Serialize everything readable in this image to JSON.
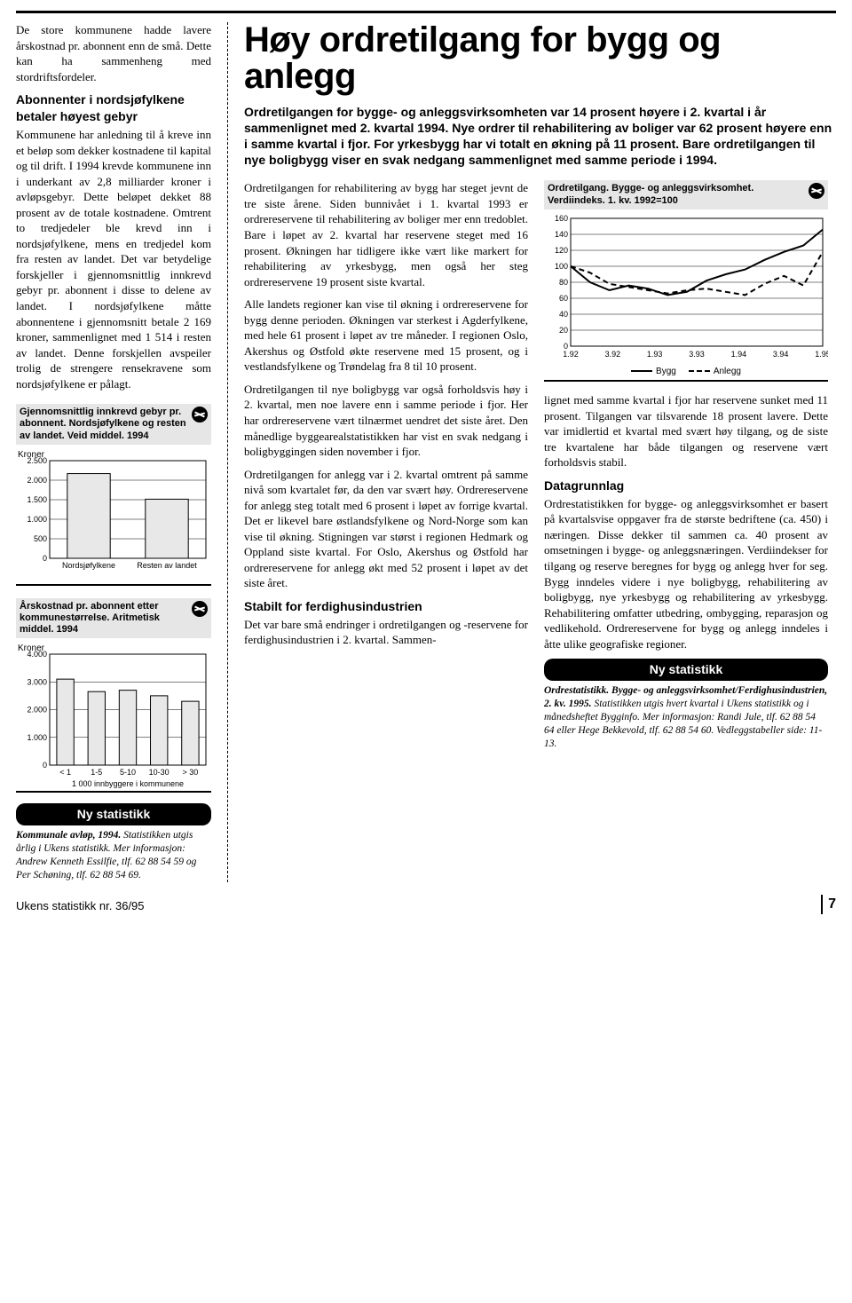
{
  "left": {
    "intro": "De store kommunene hadde lavere årskostnad pr. abonnent enn de små. Dette kan ha sammenheng med stordriftsfordeler.",
    "subhead": "Abonnenter i nordsjøfylkene betaler høyest gebyr",
    "para": "Kommunene har anledning til å kreve inn et beløp som dekker kostnadene til kapital og til drift. I 1994 krevde kommunene inn i underkant av 2,8 milliarder kroner i avløpsgebyr. Dette beløpet dekket 88 prosent av de totale kostnadene. Omtrent to tredjedeler ble krevd inn i nordsjøfylkene, mens en tredjedel kom fra resten av landet. Det var betydelige forskjeller i gjennomsnittlig innkrevd gebyr pr. abonnent i disse to delene av landet. I nordsjøfylkene måtte abonnentene i gjennomsnitt betale 2 169 kroner, sammenlignet med 1 514 i resten av landet. Denne forskjellen avspeiler trolig de strengere rensekravene som nordsjøfylkene er pålagt.",
    "chart1": {
      "title": "Gjennomsnittlig innkrevd gebyr pr. abonnent. Nordsjøfylkene og resten av landet. Veid middel. 1994",
      "ylabel": "Kroner",
      "ylim": [
        0,
        2500
      ],
      "ytick_step": 500,
      "yticklabels": [
        "0",
        "500",
        "1.000",
        "1.500",
        "2.000",
        "2.500"
      ],
      "categories": [
        "Nordsjøfylkene",
        "Resten av landet"
      ],
      "values": [
        2169,
        1514
      ],
      "bar_fill": "#e8e8e8",
      "bar_stroke": "#000000",
      "grid_color": "#000000",
      "background": "#ffffff"
    },
    "chart2": {
      "title": "Årskostnad pr. abonnent etter kommunestørrelse. Aritmetisk middel. 1994",
      "ylabel": "Kroner",
      "ylim": [
        0,
        4000
      ],
      "ytick_step": 1000,
      "yticklabels": [
        "0",
        "1.000",
        "2.000",
        "3.000",
        "4.000"
      ],
      "categories": [
        "< 1",
        "1-5",
        "5-10",
        "10-30",
        "> 30"
      ],
      "values": [
        3100,
        2650,
        2700,
        2500,
        2300
      ],
      "xlabel": "1 000 innbyggere i kommunene",
      "bar_fill": "#e8e8e8",
      "bar_stroke": "#000000",
      "grid_color": "#000000",
      "background": "#ffffff"
    },
    "nystat": "Ny statistikk",
    "ref_title": "Kommunale avløp, 1994.",
    "ref_body": "Statistikken utgis årlig i Ukens statistikk. Mer informasjon: Andrew Kenneth Essilfie, tlf. 62 88 54 59 og Per Schøning, tlf. 62 88 54 69."
  },
  "article": {
    "headline": "Høy ordretilgang for bygg og anlegg",
    "lede": "Ordretilgangen for bygge- og anleggsvirksomheten var 14 prosent høyere i 2. kvartal i år sammenlignet med 2. kvartal 1994. Nye ordrer til rehabilitering av boliger var 62 prosent høyere enn i samme kvartal i fjor. For yrkesbygg har vi totalt en økning på 11 prosent. Bare ordretilgangen til nye boligbygg viser en svak nedgang sammenlignet med samme periode i 1994.",
    "p1": "Ordretilgangen for rehabilitering av bygg har steget jevnt de tre siste årene. Siden bunnivået i 1. kvartal 1993 er ordrereservene til rehabilitering av boliger mer enn tredoblet. Bare i løpet av 2. kvartal har reservene steget med 16 prosent. Økningen har tidligere ikke vært like markert for rehabilitering av yrkesbygg, men også her steg ordrereservene 19 prosent siste kvartal.",
    "p2": "Alle landets regioner kan vise til økning i ordrereservene for bygg denne perioden. Økningen var sterkest i Agderfylkene, med hele 61 prosent i løpet av tre måneder. I regionen Oslo, Akershus og Østfold økte reservene med 15 prosent, og i vestlandsfylkene og Trøndelag fra 8 til 10 prosent.",
    "p3": "Ordretilgangen til nye boligbygg var også forholdsvis høy i 2. kvartal, men noe lavere enn i samme periode i fjor. Her har ordrereservene vært tilnærmet uendret det siste året. Den månedlige byggearealstatistikken har vist en svak nedgang i boligbyggingen siden november i fjor.",
    "p4": "Ordretilgangen for anlegg var i 2. kvartal omtrent på samme nivå som kvartalet før, da den var svært høy. Ordrereservene for anlegg steg totalt med 6 prosent i løpet av forrige kvartal. Det er likevel bare østlandsfylkene og Nord-Norge som kan vise til økning. Stigningen var størst i regionen Hedmark og Oppland siste kvartal. For Oslo, Akershus og Østfold har ordrereservene for anlegg økt med 52 prosent i løpet av det siste året.",
    "sub_stabilt": "Stabilt for ferdighusindustrien",
    "p5": "Det var bare små endringer i ordretilgangen og -reservene for ferdighusindustrien i 2. kvartal. Sammen-",
    "p5b": "lignet med samme kvartal i fjor har reservene sunket med 11 prosent. Tilgangen var tilsvarende 18 prosent lavere. Dette var imidlertid et kvartal med svært høy tilgang, og de siste tre kvartalene har både tilgangen og reservene vært forholdsvis stabil.",
    "sub_data": "Datagrunnlag",
    "p6": "Ordrestatistikken for bygge- og anleggsvirksomhet er basert på kvartalsvise oppgaver fra de største bedriftene (ca. 450) i næringen. Disse dekker til sammen ca. 40 prosent av omsetningen i bygge- og anleggsnæringen. Verdiindekser for tilgang og reserve beregnes for bygg og anlegg hver for seg. Bygg inndeles videre i nye boligbygg, rehabilitering av boligbygg, nye yrkesbygg og rehabilitering av yrkesbygg. Rehabilitering omfatter utbedring, ombygging, reparasjon og vedlikehold. Ordrereservene for bygg og anlegg inndeles i åtte ulike geografiske regioner.",
    "chart3": {
      "title": "Ordretilgang. Bygge- og anleggsvirksomhet. Verdiindeks. 1. kv. 1992=100",
      "ylim": [
        0,
        160
      ],
      "ytick_step": 20,
      "yticklabels": [
        "0",
        "20",
        "40",
        "60",
        "80",
        "100",
        "120",
        "140",
        "160"
      ],
      "xticks": [
        "1.92",
        "3.92",
        "1.93",
        "3.93",
        "1.94",
        "3.94",
        "1.95"
      ],
      "series": [
        {
          "name": "Bygg",
          "style": "solid",
          "color": "#000000",
          "y": [
            100,
            80,
            70,
            76,
            72,
            64,
            68,
            82,
            90,
            96,
            108,
            118,
            126,
            146
          ]
        },
        {
          "name": "Anlegg",
          "style": "dash",
          "color": "#000000",
          "y": [
            100,
            92,
            78,
            74,
            70,
            66,
            70,
            72,
            68,
            64,
            78,
            88,
            76,
            118
          ]
        }
      ],
      "grid_color": "#000000",
      "background": "#ffffff"
    },
    "nystat": "Ny statistikk",
    "ref_title": "Ordrestatistikk. Bygge- og anleggsvirksomhet/Ferdighusindustrien, 2. kv. 1995.",
    "ref_body": "Statistikken utgis hvert kvartal i Ukens statistikk og i månedsheftet Bygginfo. Mer informasjon: Randi Jule, tlf. 62 88 54 64 eller Hege Bekkevold, tlf. 62 88 54 60. Vedleggstabeller side: 11-13."
  },
  "footer": {
    "left": "Ukens statistikk nr. 36/95",
    "page": "7"
  }
}
